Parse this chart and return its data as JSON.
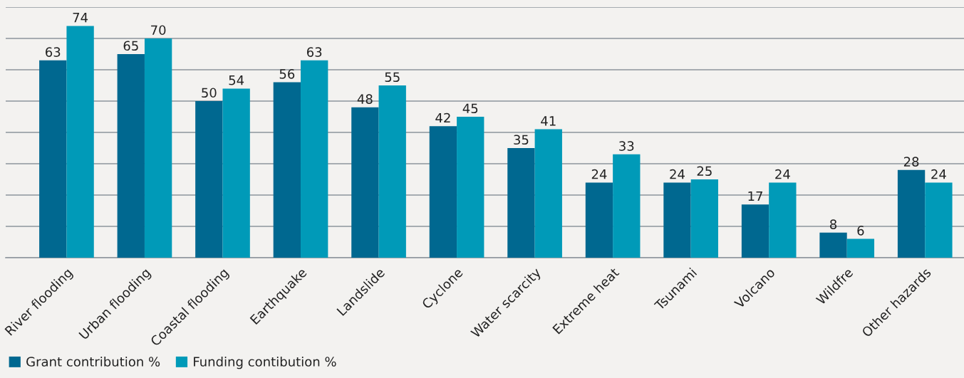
{
  "chart_data": {
    "type": "bar",
    "categories": [
      "River flooding",
      "Urban flooding",
      "Coastal flooding",
      "Earthquake",
      "Landslide",
      "Cyclone",
      "Water scarcity",
      "Extreme heat",
      "Tsunami",
      "Volcano",
      "Wildfre",
      "Other hazards"
    ],
    "series": [
      {
        "name": "Grant contribution %",
        "color": "#006890",
        "values": [
          63,
          65,
          50,
          56,
          48,
          42,
          35,
          24,
          24,
          17,
          8,
          28
        ]
      },
      {
        "name": "Funding contibution %",
        "color": "#009ab8",
        "values": [
          74,
          70,
          54,
          63,
          55,
          45,
          41,
          33,
          25,
          24,
          6,
          24
        ]
      }
    ],
    "ylim": [
      0,
      80
    ],
    "yticks": [
      {
        "value": 0,
        "label": null
      },
      {
        "value": 10,
        "label": null
      },
      {
        "value": 20,
        "label": null
      },
      {
        "value": 30,
        "label": null
      },
      {
        "value": 40,
        "label": null
      },
      {
        "value": 50,
        "label": null
      },
      {
        "value": 60,
        "label": null
      },
      {
        "value": 70,
        "label": null
      },
      {
        "value": 80,
        "label": null
      }
    ],
    "grid": "y",
    "legend": "bottom left",
    "data_labels": true,
    "tick_labels": "x"
  }
}
